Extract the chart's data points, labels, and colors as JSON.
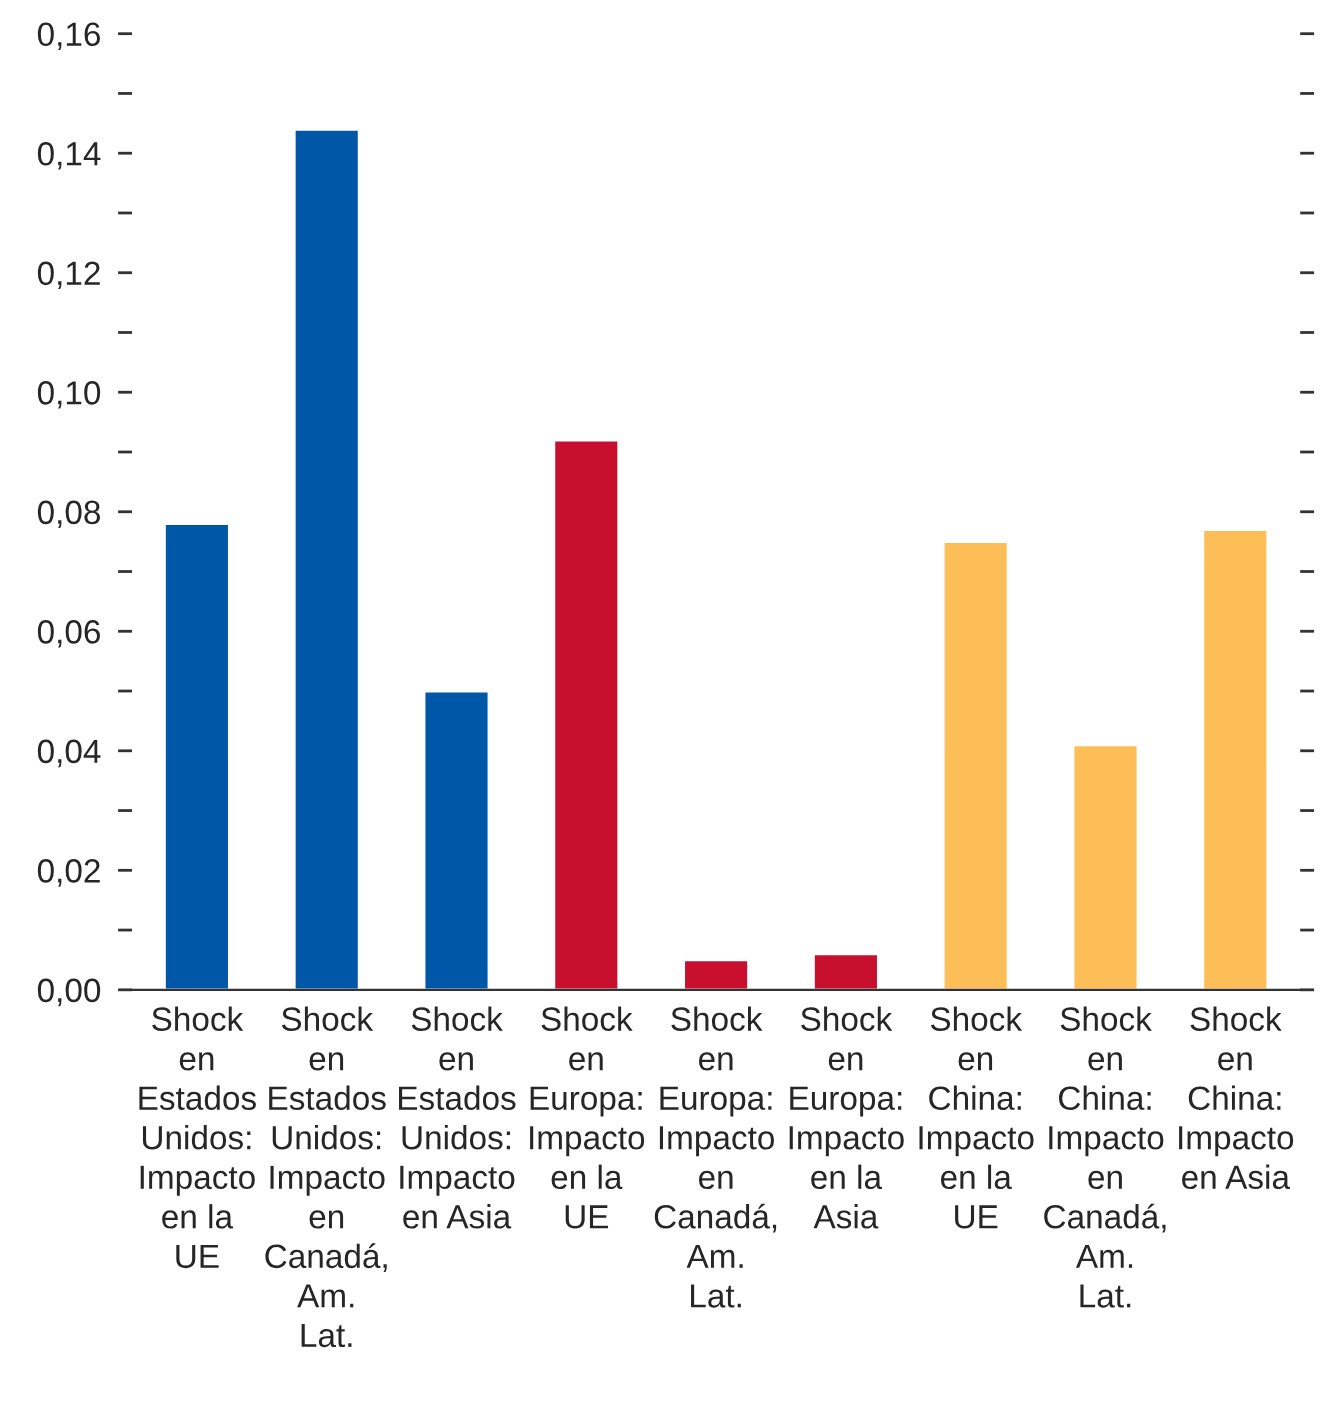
{
  "chart_data": {
    "type": "bar",
    "categories": [
      "Shock en Estados Unidos: Impacto en la UE",
      "Shock en Estados Unidos: Impacto en Canadá, Am. Lat.",
      "Shock en Estados Unidos: Impacto en Asia",
      "Shock en Europa: Impacto en la UE",
      "Shock en Europa: Impacto en Canadá, Am. Lat.",
      "Shock en Europa: Impacto en la Asia",
      "Shock en China: Impacto en la UE",
      "Shock en China: Impacto en Canadá, Am. Lat.",
      "Shock en China: Impacto en Asia"
    ],
    "values": [
      0.078,
      0.144,
      0.05,
      0.092,
      0.005,
      0.006,
      0.075,
      0.041,
      0.077
    ],
    "colors": [
      "#0057a8",
      "#0057a8",
      "#0057a8",
      "#c8102e",
      "#c8102e",
      "#c8102e",
      "#fdbd57",
      "#fdbd57",
      "#fdbd57"
    ],
    "ylim": [
      0,
      0.16
    ],
    "yticks": [
      {
        "value": 0,
        "label": "0,00"
      },
      {
        "value": 0.01,
        "label": null
      },
      {
        "value": 0.02,
        "label": "0,02"
      },
      {
        "value": 0.03,
        "label": null
      },
      {
        "value": 0.04,
        "label": "0,04"
      },
      {
        "value": 0.05,
        "label": null
      },
      {
        "value": 0.06,
        "label": "0,06"
      },
      {
        "value": 0.07,
        "label": null
      },
      {
        "value": 0.08,
        "label": "0,08"
      },
      {
        "value": 0.09,
        "label": null
      },
      {
        "value": 0.1,
        "label": "0,10"
      },
      {
        "value": 0.11,
        "label": null
      },
      {
        "value": 0.12,
        "label": "0,12"
      },
      {
        "value": 0.13,
        "label": null
      },
      {
        "value": 0.14,
        "label": "0,14"
      },
      {
        "value": 0.15,
        "label": null
      },
      {
        "value": 0.16,
        "label": "0,16"
      }
    ],
    "grid": false,
    "legend": false
  }
}
